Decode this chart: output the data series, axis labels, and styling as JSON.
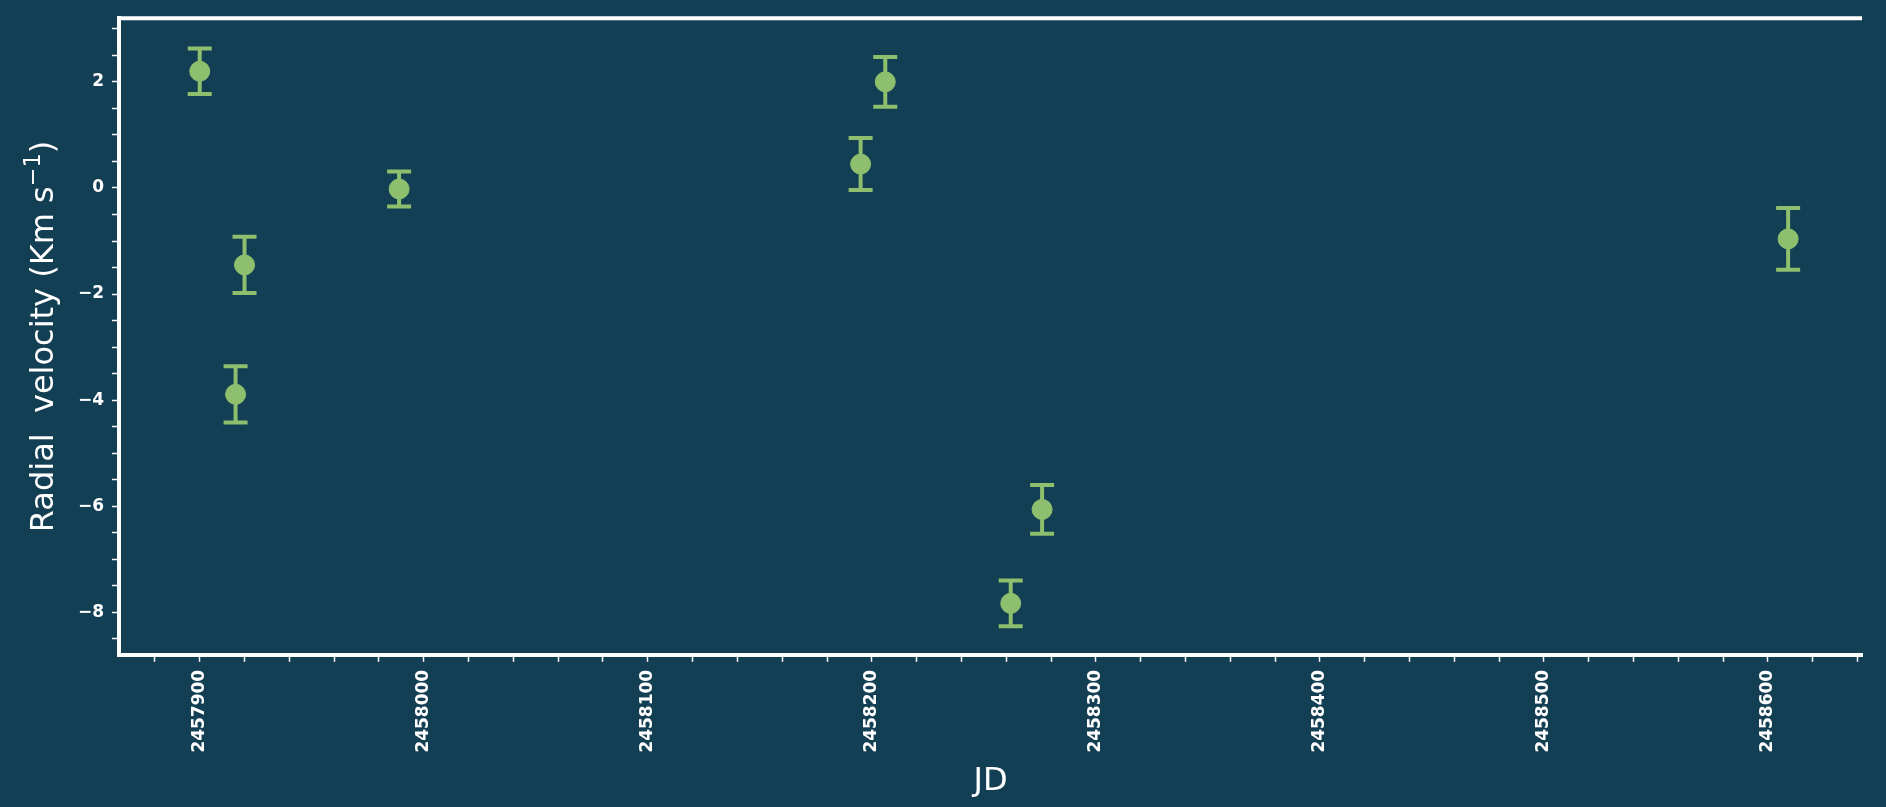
{
  "chart_data": {
    "type": "scatter",
    "xlabel": "JD",
    "ylabel": "Radial  velocity (Km s$^{−1}$)",
    "x": [
      2457900,
      2457916,
      2457920,
      2457989,
      2458195,
      2458206,
      2458262,
      2458276,
      2458609
    ],
    "series": [
      {
        "color": "#8dbf6e",
        "values": [
          2.2,
          -3.89,
          -1.45,
          -0.02,
          0.45,
          2.0,
          -7.83,
          -6.06,
          -0.96
        ],
        "errors": [
          0.43,
          0.53,
          0.53,
          0.33,
          0.49,
          0.47,
          0.43,
          0.46,
          0.58
        ]
      }
    ],
    "marker": "circle",
    "grid": false,
    "legend": false,
    "xlim": [
      2457864,
      2458642
    ],
    "ylim": [
      -8.8,
      3.2
    ],
    "xticks": [
      {
        "value": 2457880,
        "label": null
      },
      2457900,
      {
        "value": 2457920,
        "label": null
      },
      {
        "value": 2457940,
        "label": null
      },
      {
        "value": 2457960,
        "label": null
      },
      {
        "value": 2457980,
        "label": null
      },
      2458000,
      {
        "value": 2458020,
        "label": null
      },
      {
        "value": 2458040,
        "label": null
      },
      {
        "value": 2458060,
        "label": null
      },
      {
        "value": 2458080,
        "label": null
      },
      2458100,
      {
        "value": 2458120,
        "label": null
      },
      {
        "value": 2458140,
        "label": null
      },
      {
        "value": 2458160,
        "label": null
      },
      {
        "value": 2458180,
        "label": null
      },
      2458200,
      {
        "value": 2458220,
        "label": null
      },
      {
        "value": 2458240,
        "label": null
      },
      {
        "value": 2458260,
        "label": null
      },
      {
        "value": 2458280,
        "label": null
      },
      2458300,
      {
        "value": 2458320,
        "label": null
      },
      {
        "value": 2458340,
        "label": null
      },
      {
        "value": 2458360,
        "label": null
      },
      {
        "value": 2458380,
        "label": null
      },
      2458400,
      {
        "value": 2458420,
        "label": null
      },
      {
        "value": 2458440,
        "label": null
      },
      {
        "value": 2458460,
        "label": null
      },
      {
        "value": 2458480,
        "label": null
      },
      2458500,
      {
        "value": 2458520,
        "label": null
      },
      {
        "value": 2458540,
        "label": null
      },
      {
        "value": 2458560,
        "label": null
      },
      {
        "value": 2458580,
        "label": null
      },
      2458600,
      {
        "value": 2458620,
        "label": null
      },
      {
        "value": 2458640,
        "label": null
      }
    ],
    "yticks": [
      {
        "value": -8.5,
        "label": null
      },
      {
        "value": -8,
        "label": "−8"
      },
      {
        "value": -7.5,
        "label": null
      },
      {
        "value": -7,
        "label": null
      },
      {
        "value": -6.5,
        "label": null
      },
      {
        "value": -6,
        "label": "−6"
      },
      {
        "value": -5.5,
        "label": null
      },
      {
        "value": -5,
        "label": null
      },
      {
        "value": -4.5,
        "label": null
      },
      {
        "value": -4,
        "label": "−4"
      },
      {
        "value": -3.5,
        "label": null
      },
      {
        "value": -3,
        "label": null
      },
      {
        "value": -2.5,
        "label": null
      },
      {
        "value": -2,
        "label": "−2"
      },
      {
        "value": -1.5,
        "label": null
      },
      {
        "value": -1,
        "label": null
      },
      {
        "value": -0.5,
        "label": null
      },
      0,
      {
        "value": 0.5,
        "label": null
      },
      {
        "value": 1,
        "label": null
      },
      {
        "value": 1.5,
        "label": null
      },
      2,
      {
        "value": 2.5,
        "label": null
      },
      {
        "value": 3,
        "label": null
      }
    ]
  }
}
